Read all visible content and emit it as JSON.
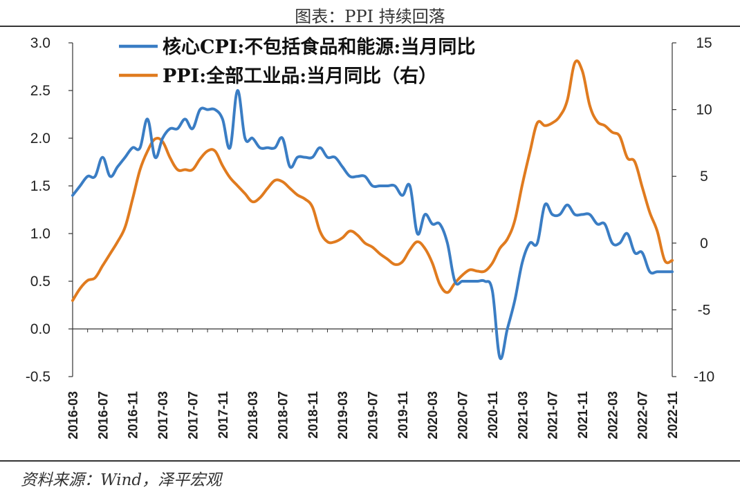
{
  "title": "图表：PPI 持续回落",
  "source": "资料来源：Wind，泽平宏观",
  "chart_data": {
    "type": "line",
    "x": [
      "2016-03",
      "2016-04",
      "2016-05",
      "2016-06",
      "2016-07",
      "2016-08",
      "2016-09",
      "2016-10",
      "2016-11",
      "2016-12",
      "2017-01",
      "2017-02",
      "2017-03",
      "2017-04",
      "2017-05",
      "2017-06",
      "2017-07",
      "2017-08",
      "2017-09",
      "2017-10",
      "2017-11",
      "2017-12",
      "2018-01",
      "2018-02",
      "2018-03",
      "2018-04",
      "2018-05",
      "2018-06",
      "2018-07",
      "2018-08",
      "2018-09",
      "2018-10",
      "2018-11",
      "2018-12",
      "2019-01",
      "2019-02",
      "2019-03",
      "2019-04",
      "2019-05",
      "2019-06",
      "2019-07",
      "2019-08",
      "2019-09",
      "2019-10",
      "2019-11",
      "2019-12",
      "2020-01",
      "2020-02",
      "2020-03",
      "2020-04",
      "2020-05",
      "2020-06",
      "2020-07",
      "2020-08",
      "2020-09",
      "2020-10",
      "2020-11",
      "2020-12",
      "2021-01",
      "2021-02",
      "2021-03",
      "2021-04",
      "2021-05",
      "2021-06",
      "2021-07",
      "2021-08",
      "2021-09",
      "2021-10",
      "2021-11",
      "2021-12",
      "2022-01",
      "2022-02",
      "2022-03",
      "2022-04",
      "2022-05",
      "2022-06",
      "2022-07",
      "2022-08",
      "2022-09",
      "2022-10",
      "2022-11"
    ],
    "x_tick_labels": [
      "2016-03",
      "2016-07",
      "2016-11",
      "2017-03",
      "2017-07",
      "2017-11",
      "2018-03",
      "2018-07",
      "2018-11",
      "2019-03",
      "2019-07",
      "2019-11",
      "2020-03",
      "2020-07",
      "2020-11",
      "2021-03",
      "2021-07",
      "2021-11",
      "2022-03",
      "2022-07",
      "2022-11"
    ],
    "series": [
      {
        "name": "核心CPI:不包括食品和能源:当月同比",
        "axis": "left",
        "color": "#3a7dc4",
        "values": [
          1.4,
          1.5,
          1.6,
          1.6,
          1.8,
          1.6,
          1.7,
          1.8,
          1.9,
          1.9,
          2.2,
          1.8,
          2.0,
          2.1,
          2.1,
          2.2,
          2.1,
          2.3,
          2.3,
          2.3,
          2.2,
          1.9,
          2.5,
          2.0,
          2.0,
          1.9,
          1.9,
          1.9,
          2.0,
          1.7,
          1.8,
          1.8,
          1.8,
          1.9,
          1.8,
          1.8,
          1.7,
          1.6,
          1.6,
          1.6,
          1.5,
          1.5,
          1.5,
          1.5,
          1.4,
          1.5,
          1.0,
          1.2,
          1.1,
          1.1,
          0.9,
          0.5,
          0.5,
          0.5,
          0.5,
          0.5,
          0.4,
          -0.3,
          0.0,
          0.3,
          0.7,
          0.9,
          0.9,
          1.3,
          1.2,
          1.2,
          1.3,
          1.2,
          1.2,
          1.2,
          1.1,
          1.1,
          0.9,
          0.9,
          1.0,
          0.8,
          0.8,
          0.6,
          0.6,
          0.6,
          0.6
        ]
      },
      {
        "name": "PPI:全部工业品:当月同比（右）",
        "axis": "right",
        "color": "#e07b1f",
        "values": [
          -4.3,
          -3.4,
          -2.8,
          -2.6,
          -1.7,
          -0.8,
          0.1,
          1.2,
          3.3,
          5.5,
          6.9,
          7.8,
          7.6,
          6.4,
          5.5,
          5.5,
          5.5,
          6.3,
          6.9,
          6.9,
          5.8,
          4.9,
          4.3,
          3.7,
          3.1,
          3.4,
          4.1,
          4.7,
          4.6,
          4.1,
          3.6,
          3.3,
          2.7,
          0.9,
          0.1,
          0.1,
          0.4,
          0.9,
          0.6,
          0.0,
          -0.3,
          -0.8,
          -1.2,
          -1.6,
          -1.4,
          -0.5,
          0.1,
          -0.4,
          -1.5,
          -3.1,
          -3.7,
          -3.0,
          -2.4,
          -2.0,
          -2.1,
          -2.1,
          -1.5,
          -0.4,
          0.3,
          1.7,
          4.4,
          6.8,
          9.0,
          8.8,
          9.0,
          9.5,
          10.7,
          13.5,
          12.9,
          10.3,
          9.1,
          8.8,
          8.3,
          8.0,
          6.4,
          6.1,
          4.2,
          2.3,
          0.9,
          -1.3,
          -1.3
        ]
      }
    ],
    "y_left": {
      "lim": [
        -0.5,
        3.0
      ],
      "ticks": [
        "-0.5",
        "0.0",
        "0.5",
        "1.0",
        "1.5",
        "2.0",
        "2.5",
        "3.0"
      ]
    },
    "y_right": {
      "lim": [
        -10,
        15
      ],
      "ticks": [
        "-10",
        "-5",
        "0",
        "5",
        "10",
        "15"
      ]
    },
    "legend_position": "top-left",
    "grid": false
  }
}
